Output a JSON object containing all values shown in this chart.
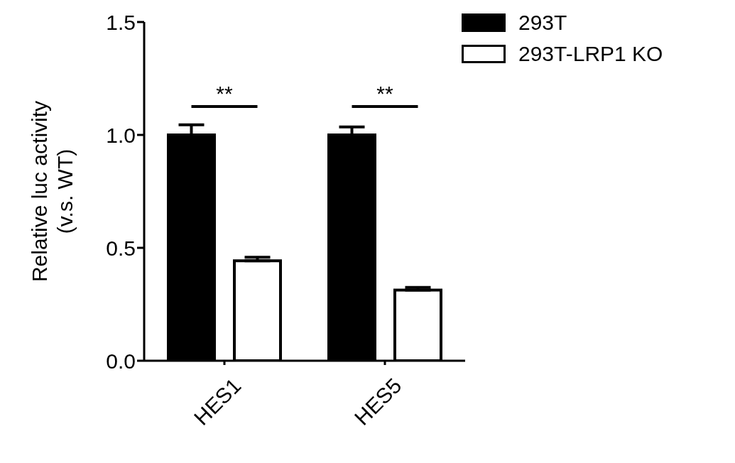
{
  "chart_data": {
    "type": "bar",
    "ylabel": "Relative luc activity\n(v.s. WT)",
    "categories": [
      "HES1",
      "HES5"
    ],
    "series": [
      {
        "name": "293T",
        "color": "#000000",
        "values": [
          1.0,
          1.0
        ],
        "errors": [
          0.045,
          0.035
        ]
      },
      {
        "name": "293T-LRP1 KO",
        "color": "#ffffff",
        "values": [
          0.443,
          0.313
        ],
        "errors": [
          0.015,
          0.012
        ]
      }
    ],
    "ylim": [
      0,
      1.5
    ],
    "yticks": [
      {
        "value": 0,
        "label": "0.0"
      },
      {
        "value": 0.5,
        "label": "0.5"
      },
      {
        "value": 1,
        "label": "1.0"
      },
      {
        "value": 1.5,
        "label": "1.5"
      }
    ],
    "annotations": [
      "**",
      "**"
    ],
    "grid": false,
    "legend": "top right"
  }
}
